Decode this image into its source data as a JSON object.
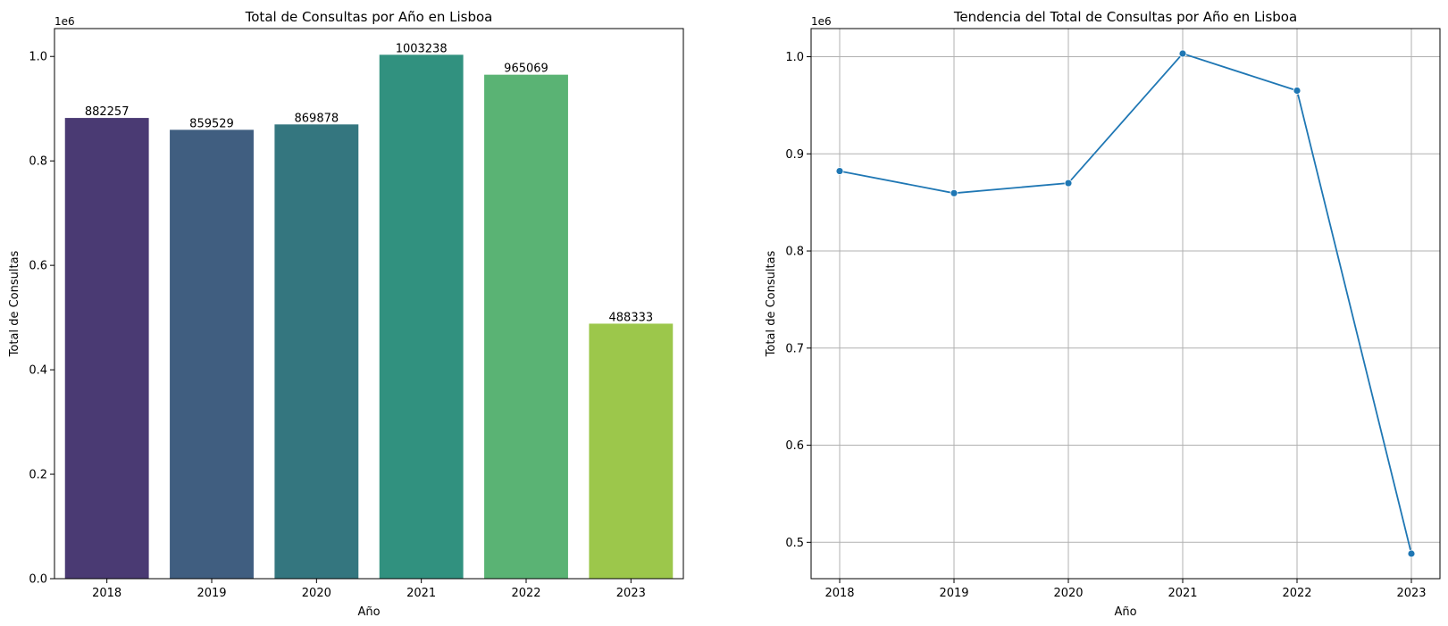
{
  "chart_data": [
    {
      "type": "bar",
      "title": "Total de Consultas por Año en Lisboa",
      "xlabel": "Año",
      "ylabel": "Total de Consultas",
      "offset_label": "1e6",
      "categories": [
        "2018",
        "2019",
        "2020",
        "2021",
        "2022",
        "2023"
      ],
      "values": [
        882257,
        859529,
        869878,
        1003238,
        965069,
        488333
      ],
      "bar_labels": [
        "882257",
        "859529",
        "869878",
        "1003238",
        "965069",
        "488333"
      ],
      "colors": [
        "#4a3a73",
        "#405e80",
        "#34767f",
        "#31917f",
        "#5ab374",
        "#9cc74b"
      ],
      "ylim": [
        0,
        1053400
      ],
      "yticks": [
        0,
        200000,
        400000,
        600000,
        800000,
        1000000
      ],
      "ytick_labels": [
        "0.0",
        "0.2",
        "0.4",
        "0.6",
        "0.8",
        "1.0"
      ],
      "grid": false
    },
    {
      "type": "line",
      "title": "Tendencia del Total de Consultas por Año en Lisboa",
      "xlabel": "Año",
      "ylabel": "Total de Consultas",
      "offset_label": "1e6",
      "x": [
        "2018",
        "2019",
        "2020",
        "2021",
        "2022",
        "2023"
      ],
      "values": [
        882257,
        859529,
        869878,
        1003238,
        965069,
        488333
      ],
      "color": "#1f77b4",
      "marker": "circle",
      "ylim": [
        462588,
        1028983
      ],
      "yticks": [
        500000,
        600000,
        700000,
        800000,
        900000,
        1000000
      ],
      "ytick_labels": [
        "0.5",
        "0.6",
        "0.7",
        "0.8",
        "0.9",
        "1.0"
      ],
      "grid": true
    }
  ]
}
